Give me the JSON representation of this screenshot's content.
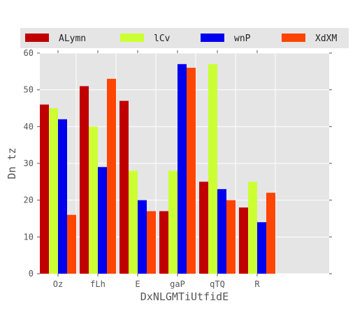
{
  "chart_data": {
    "type": "bar",
    "title": "",
    "xlabel": "DxNLGMTiUtfidE",
    "ylabel": "Dn tz",
    "ylim": [
      0,
      60
    ],
    "yticks": [
      0,
      10,
      20,
      30,
      40,
      50,
      60
    ],
    "grid": true,
    "legend_position": "top",
    "categories": [
      "Oz",
      "fLh",
      "E",
      "gaP",
      "qTQ",
      "R"
    ],
    "series": [
      {
        "name": "ALymn",
        "color": "#c00000",
        "values": [
          46,
          51,
          47,
          17,
          25,
          18
        ]
      },
      {
        "name": "lCv",
        "color": "#ccff33",
        "values": [
          45,
          40,
          28,
          28,
          57,
          25
        ]
      },
      {
        "name": "wnP",
        "color": "#0000ee",
        "values": [
          42,
          29,
          20,
          57,
          23,
          14
        ]
      },
      {
        "name": "XdXM",
        "color": "#ff4500",
        "values": [
          16,
          53,
          17,
          56,
          20,
          22
        ]
      }
    ]
  }
}
